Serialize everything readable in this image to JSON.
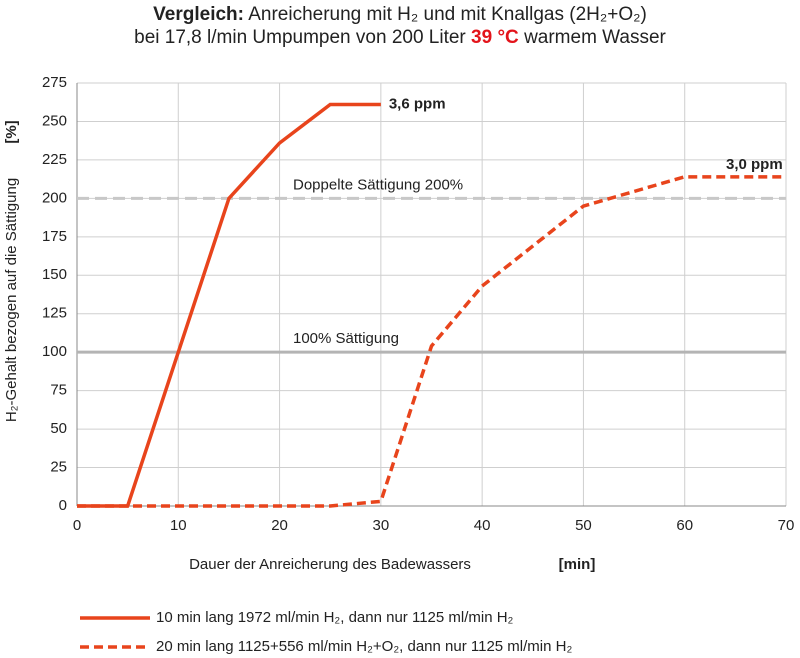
{
  "chart_data": {
    "type": "line",
    "title_bold": "Vergleich:",
    "title": "Anreicherung mit H₂ und mit Knallgas (2H₂+O₂)",
    "subtitle": [
      "bei 17,8 l/min Umpumpen von 200 Liter",
      "39 °C",
      "warmem Wasser"
    ],
    "subtitle_highlight_color": "#e3141b",
    "y_label": "H₂-Gehalt bezogen auf die Sättigung",
    "y_unit": "[%]",
    "x_label": "Dauer der Anreicherung des Badewassers",
    "x_unit": "[min]",
    "xlim": [
      0,
      70
    ],
    "xticks": [
      0,
      10,
      20,
      30,
      40,
      50,
      60,
      70
    ],
    "ylim": [
      0,
      275
    ],
    "yticks": [
      0,
      25,
      50,
      75,
      100,
      125,
      150,
      175,
      200,
      225,
      250,
      275
    ],
    "grid": true,
    "reference_lines": [
      {
        "value": 200,
        "label": "Doppelte Sättigung 200%",
        "color": "#c8c8c8",
        "dash": true
      },
      {
        "value": 100,
        "label": "100% Sättigung",
        "color": "#b4b4b4",
        "dash": false
      }
    ],
    "series": [
      {
        "name": "10 min lang 1972 ml/min H₂, dann nur 1125 ml/min H₂",
        "color": "#e8441c",
        "dash": false,
        "x": [
          0,
          5,
          15,
          20,
          25,
          30
        ],
        "values": [
          0,
          0,
          200,
          236,
          261,
          261
        ],
        "end_label": "3,6 ppm"
      },
      {
        "name": "20 min lang 1125+556 ml/min H₂+O₂, dann nur 1125 ml/min H₂",
        "color": "#e8441c",
        "dash": true,
        "x": [
          0,
          25,
          30,
          35,
          40,
          50,
          60,
          70
        ],
        "values": [
          0,
          0,
          3,
          104,
          143,
          195,
          214,
          214
        ],
        "end_label": "3,0 ppm"
      }
    ]
  }
}
